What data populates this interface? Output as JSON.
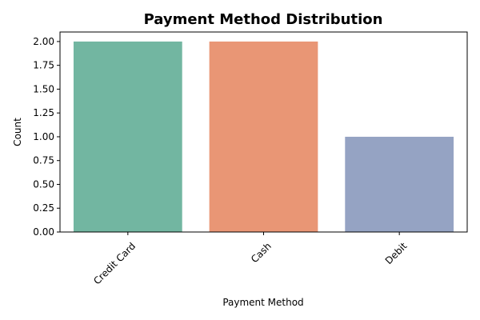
{
  "chart_data": {
    "type": "bar",
    "title": "Payment Method Distribution",
    "xlabel": "Payment Method",
    "ylabel": "Count",
    "categories": [
      "Credit Card",
      "Cash",
      "Debit"
    ],
    "values": [
      2,
      2,
      1
    ],
    "colors": [
      "#72b6a1",
      "#e99675",
      "#95a3c3"
    ],
    "ylim": [
      0,
      2.1
    ],
    "yticks": [
      0.0,
      0.25,
      0.5,
      0.75,
      1.0,
      1.25,
      1.5,
      1.75,
      2.0
    ],
    "ytick_labels": [
      "0.00",
      "0.25",
      "0.50",
      "0.75",
      "1.00",
      "1.25",
      "1.50",
      "1.75",
      "2.00"
    ],
    "grid": false,
    "legend": "none"
  }
}
